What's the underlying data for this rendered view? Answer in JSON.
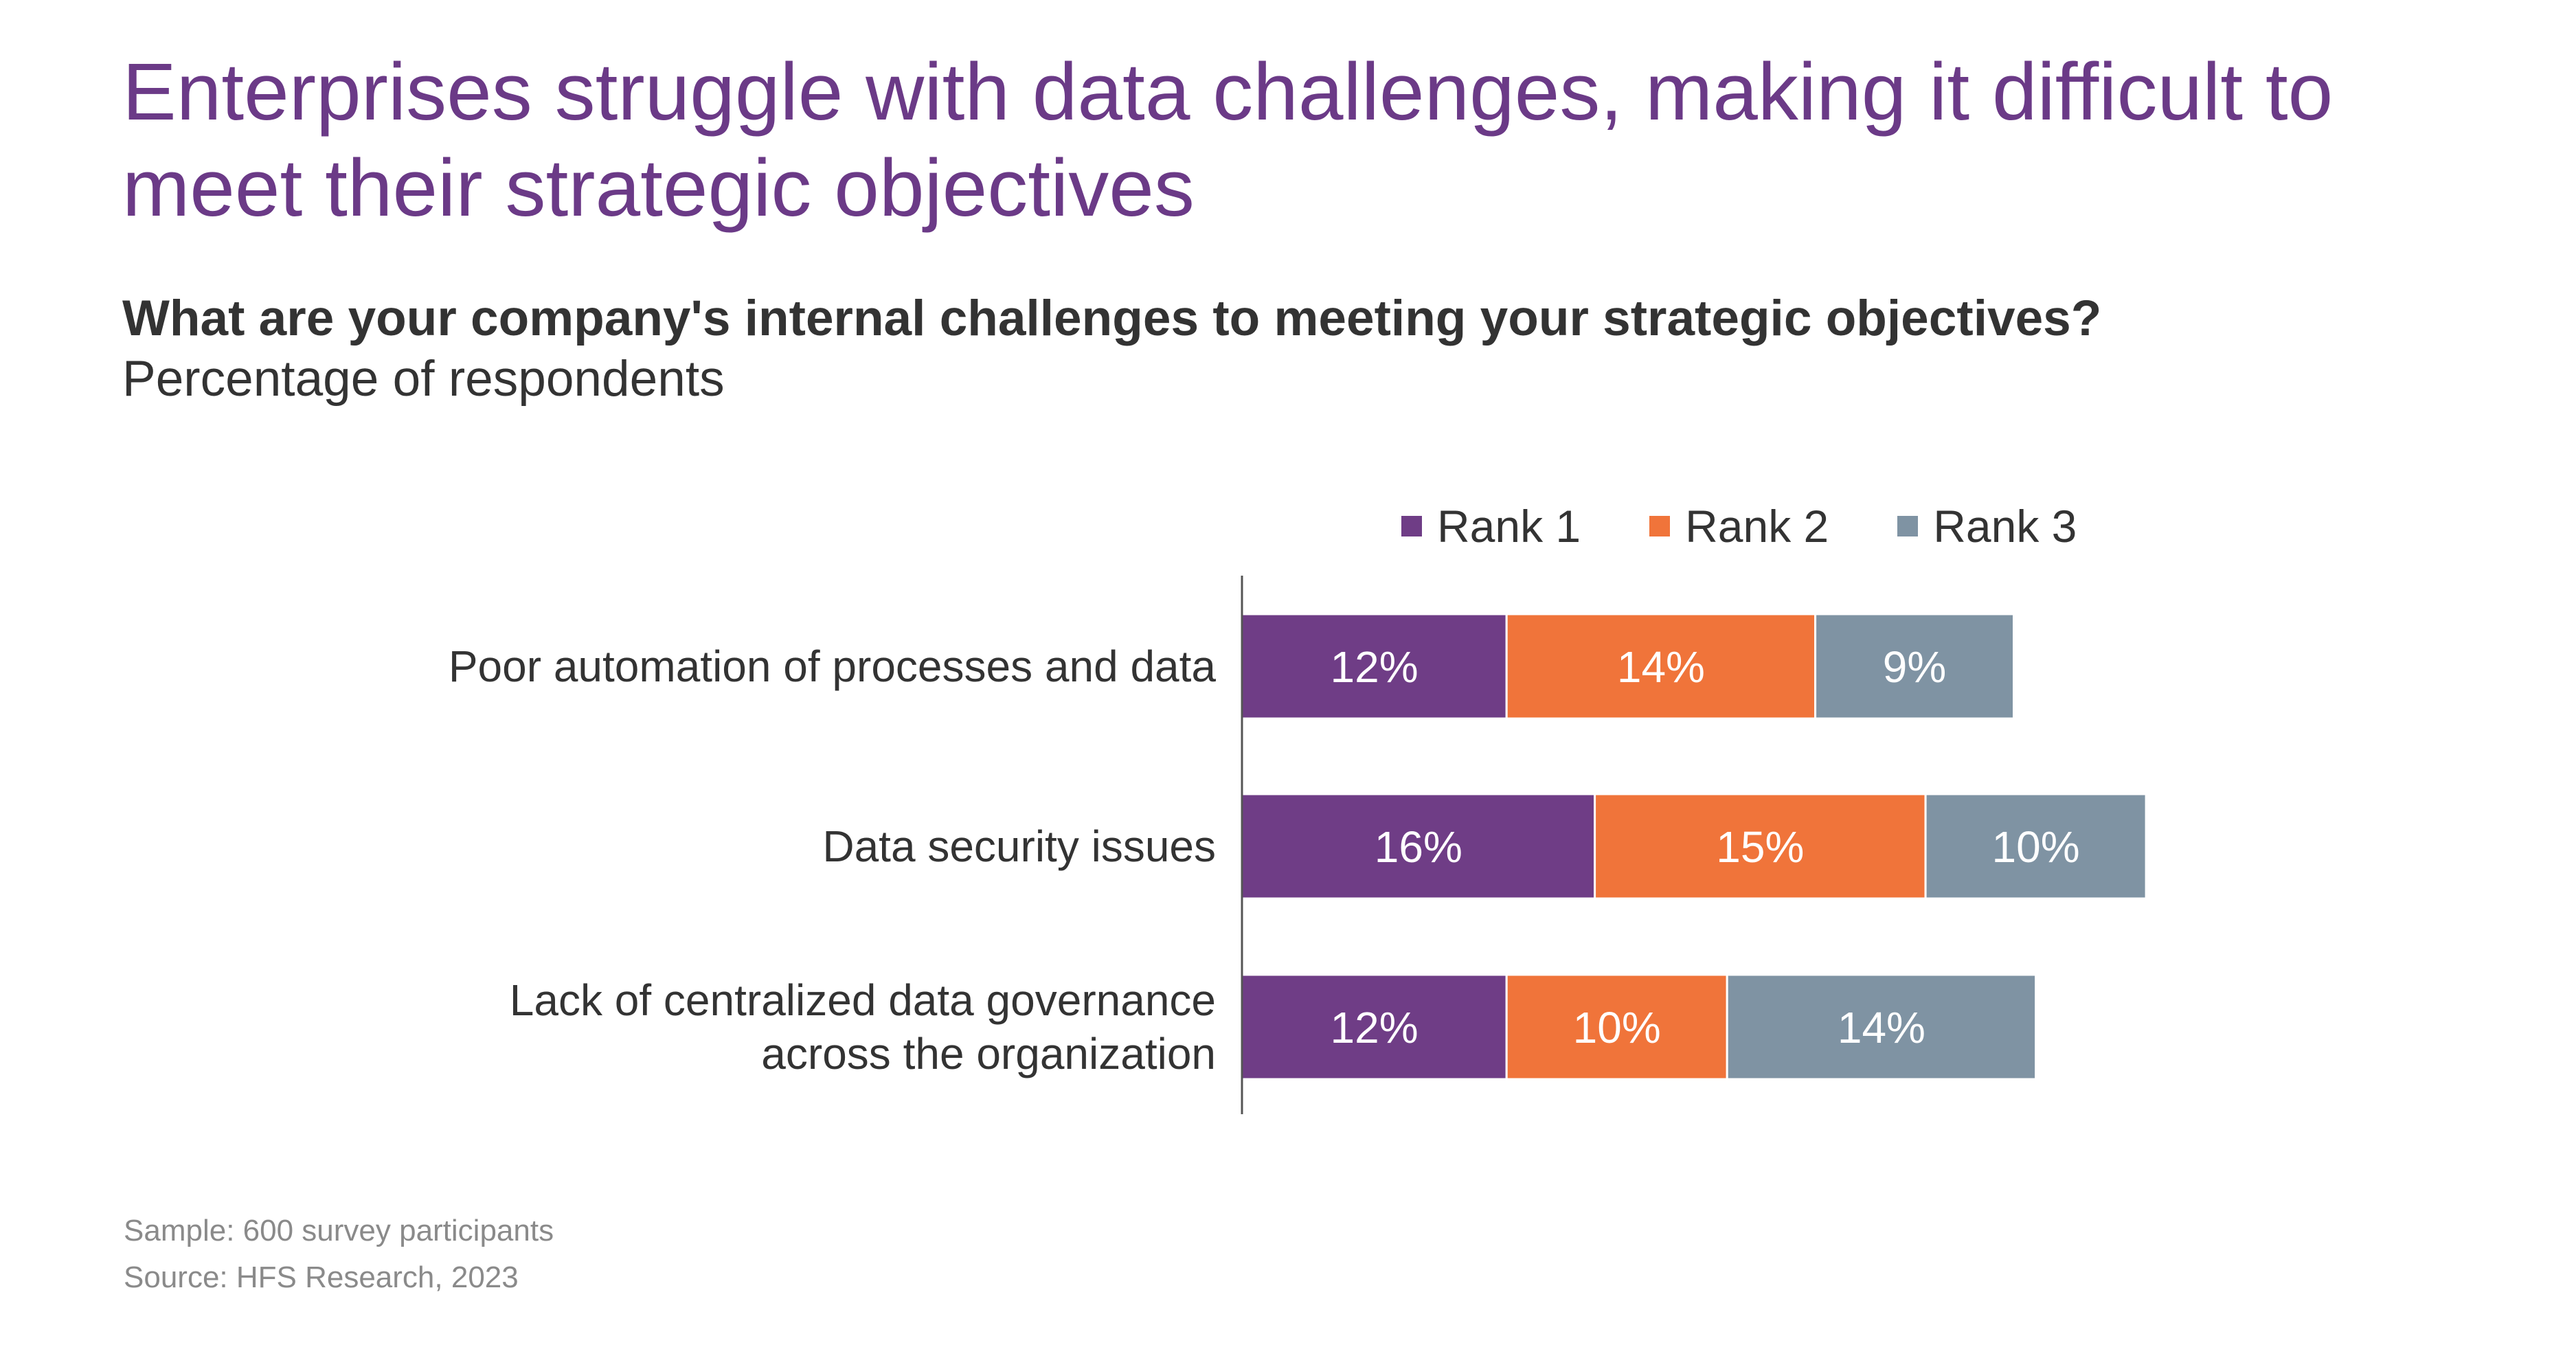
{
  "title": "Enterprises struggle with data challenges, making it difficult to meet their strategic objectives",
  "question": "What are your company's internal challenges to meeting your strategic objectives?",
  "unit_label": "Percentage of respondents",
  "footnotes": {
    "sample": "Sample: 600 survey participants",
    "source": "Source: HFS Research, 2023"
  },
  "colors": {
    "title": "#6b3a87",
    "rank1": "#6f3d86",
    "rank2": "#f0743a",
    "rank3": "#7f93a3"
  },
  "chart_data": {
    "type": "bar",
    "orientation": "horizontal",
    "stacked": true,
    "legend_position": "top",
    "categories": [
      "Poor automation of processes and data",
      "Data security issues",
      "Lack of centralized data governance across the organization"
    ],
    "category_label_lines": [
      [
        "Poor automation of processes and data"
      ],
      [
        "Data security issues"
      ],
      [
        "Lack of centralized data governance",
        "across the organization"
      ]
    ],
    "series": [
      {
        "name": "Rank 1",
        "values": [
          12,
          16,
          12
        ],
        "labels": [
          "12%",
          "16%",
          "12%"
        ],
        "color": "#6f3d86"
      },
      {
        "name": "Rank 2",
        "values": [
          14,
          15,
          10
        ],
        "labels": [
          "14%",
          "15%",
          "10%"
        ],
        "color": "#f0743a"
      },
      {
        "name": "Rank 3",
        "values": [
          9,
          10,
          14
        ],
        "labels": [
          "9%",
          "10%",
          "14%"
        ],
        "color": "#7f93a3"
      }
    ]
  }
}
